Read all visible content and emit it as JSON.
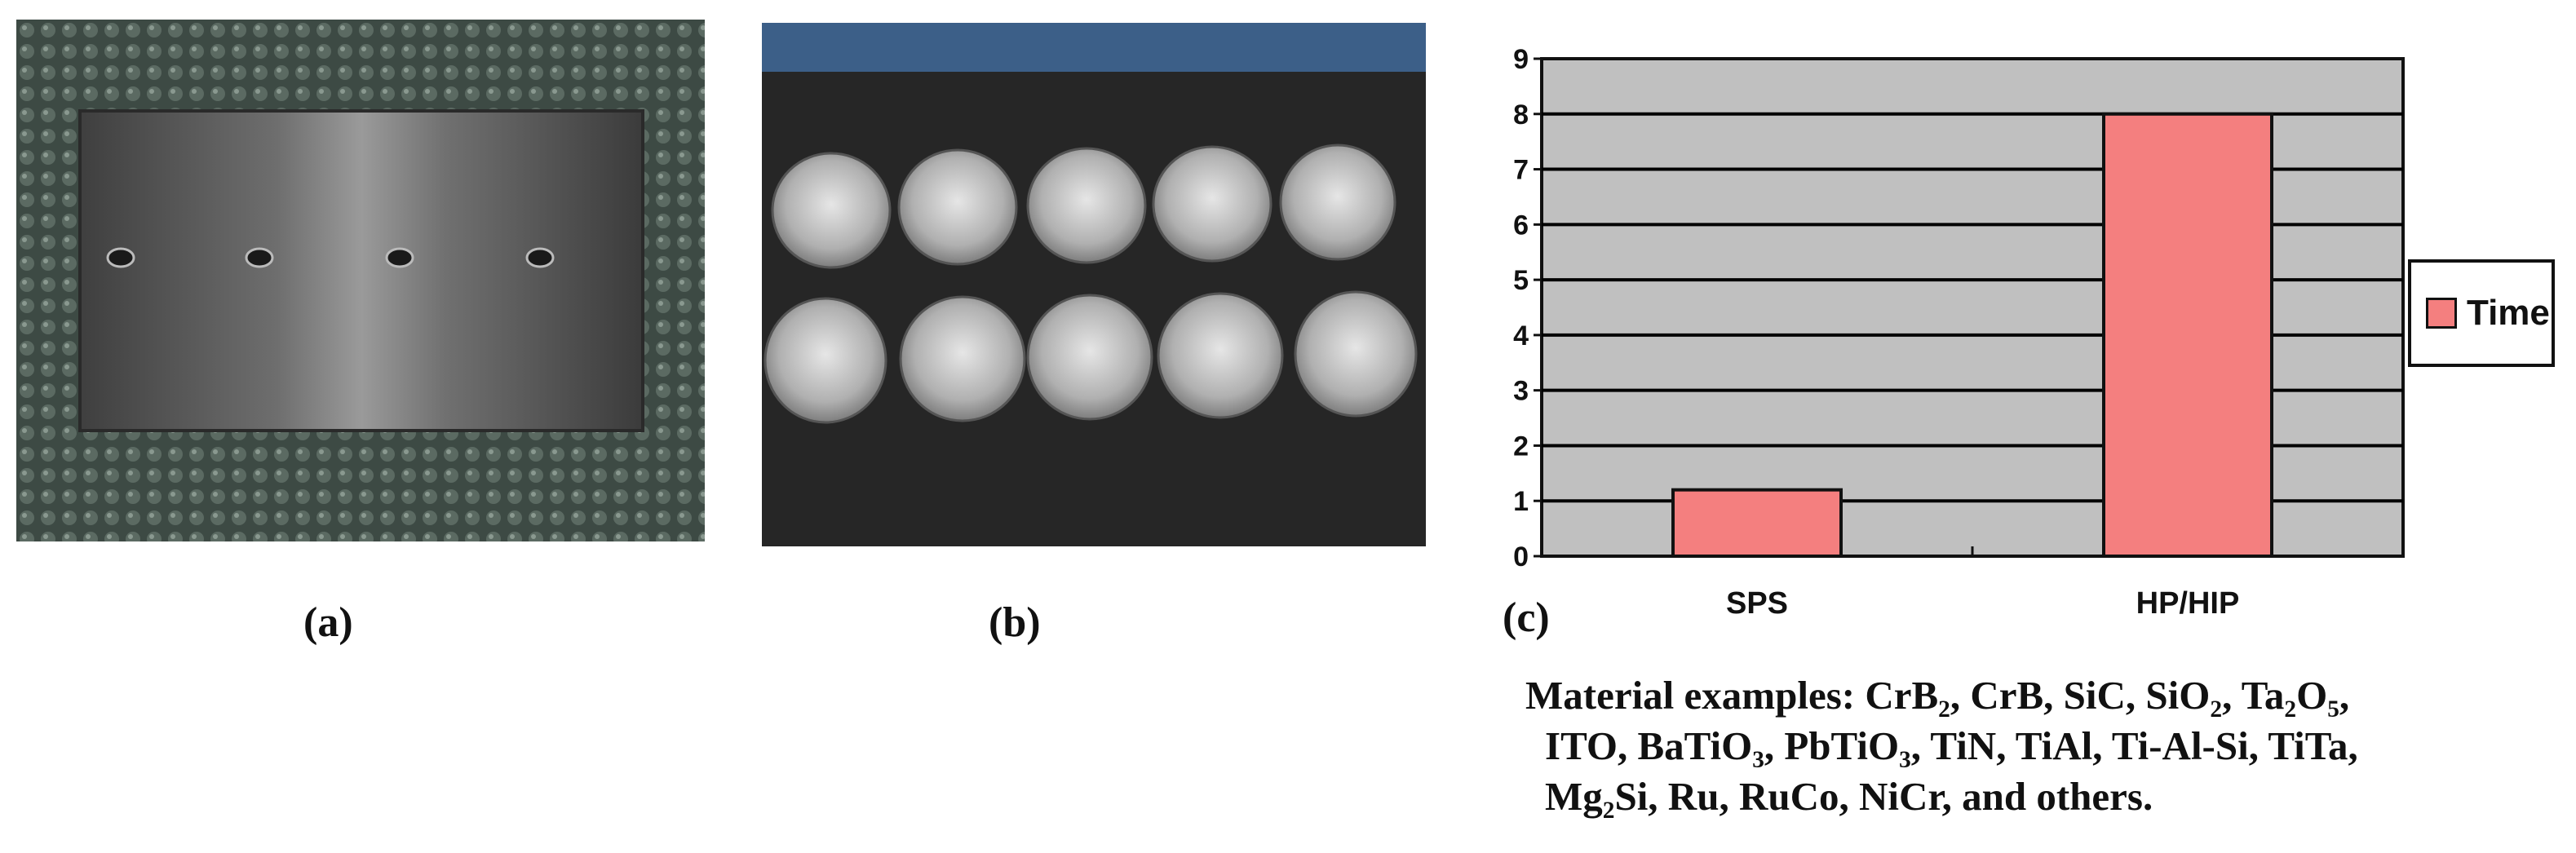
{
  "panels": {
    "a": {
      "label": "(a)",
      "image": "rectangular-metal-plate-photo"
    },
    "b": {
      "label": "(b)",
      "image": "circular-sputtering-targets-photo"
    },
    "c": {
      "label": "(c)"
    }
  },
  "colors": {
    "bar_fill": "#f47f7f",
    "plot_background": "#c0c0c0",
    "gridline": "#000000"
  },
  "chart_data": {
    "type": "bar",
    "categories": [
      "SPS",
      "HP/HIP"
    ],
    "series": [
      {
        "name": "Time",
        "values": [
          1.2,
          8
        ]
      }
    ],
    "yticks": [
      "0",
      "1",
      "2",
      "3",
      "4",
      "5",
      "6",
      "7",
      "8",
      "9"
    ],
    "ylim": [
      0,
      9
    ],
    "grid": true,
    "legend_position": "right",
    "title": "",
    "xlabel": "",
    "ylabel": ""
  },
  "materials": {
    "line1": "Material examples: CrB₂, CrB, SiC, SiO₂, Ta₂O₅,",
    "line2": "ITO, BaTiO₃, PbTiO₃, TiN, TiAl, Ti-Al-Si, TiTa,",
    "line3": "Mg₂Si, Ru, RuCo, NiCr, and others."
  }
}
